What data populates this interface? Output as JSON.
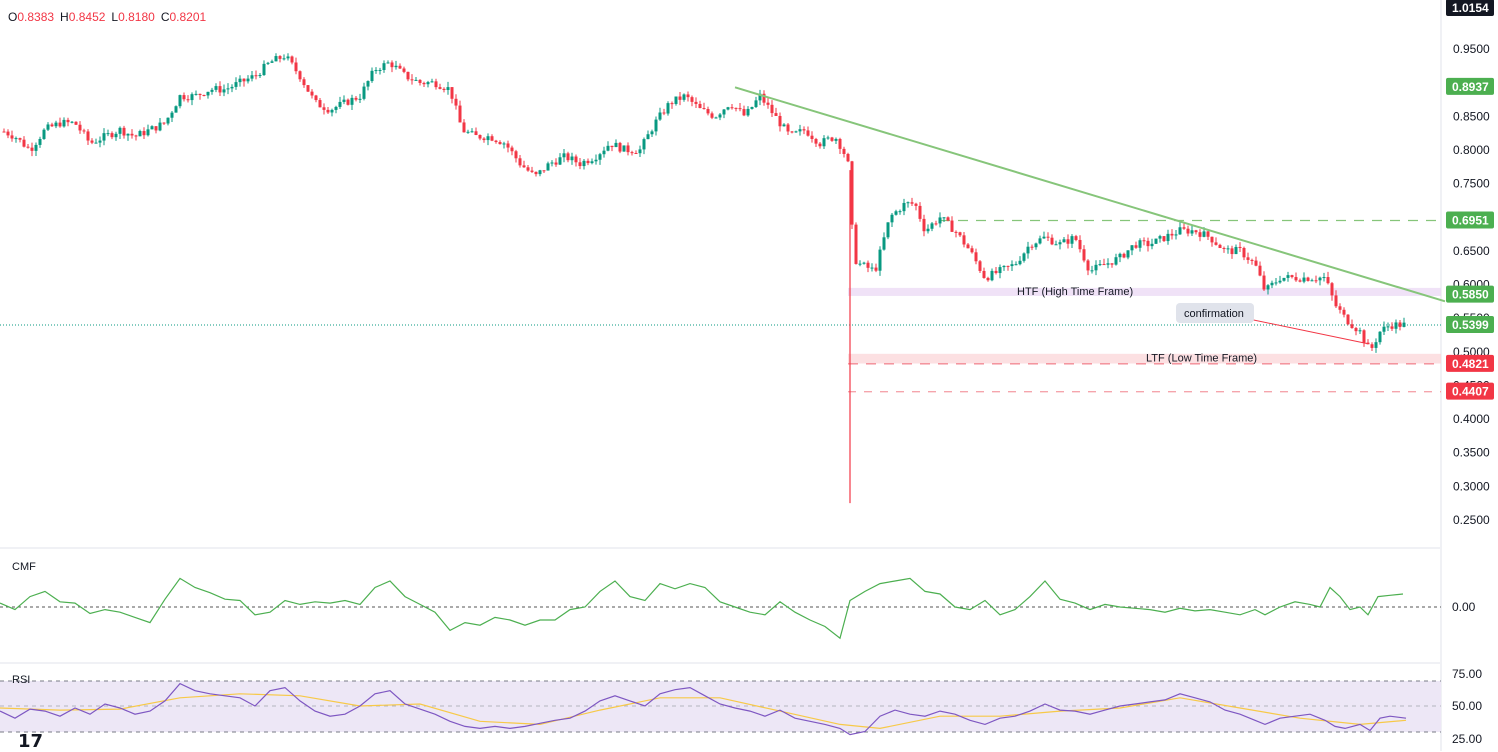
{
  "ohlc": {
    "open_key": "O",
    "open": "0.8383",
    "high_key": "H",
    "high": "0.8452",
    "low_key": "L",
    "low": "0.8180",
    "close_key": "C",
    "close": "0.8201"
  },
  "colors": {
    "up": "#089981",
    "down": "#f23645",
    "trendline": "#86c57a",
    "htf_zone": "#e9d5f3",
    "ltf_zone": "#fbd3d6",
    "cmf": "#4caf50",
    "rsi": "#7e57c2",
    "rsi_ma": "#f7c948",
    "rsi_band": "#ede7f6"
  },
  "indicators": {
    "cmf_label": "CMF",
    "cmf_value": "0.00",
    "rsi_label": "RSI",
    "rsi_ticks": [
      "75.00",
      "50.00",
      "25.00"
    ]
  },
  "logo": "17",
  "chart_data": {
    "type": "line",
    "yaxis_ticks": [
      "0.9500",
      "0.9000",
      "0.8500",
      "0.8000",
      "0.7500",
      "0.7000",
      "0.6500",
      "0.6000",
      "0.5500",
      "0.5000",
      "0.4500",
      "0.4000",
      "0.3500",
      "0.3000",
      "0.2500"
    ],
    "ylim": [
      0.23,
      1.02
    ],
    "price_labels": [
      {
        "value": 1.0154,
        "text": "1.0154",
        "color": "#131722"
      },
      {
        "value": 0.8937,
        "text": "0.8937",
        "color": "#4caf50"
      },
      {
        "value": 0.6951,
        "text": "0.6951",
        "color": "#4caf50"
      },
      {
        "value": 0.585,
        "text": "0.5850",
        "color": "#4caf50"
      },
      {
        "value": 0.5399,
        "text": "0.5399",
        "color": "#4caf50"
      },
      {
        "value": 0.4821,
        "text": "0.4821",
        "color": "#f23645"
      },
      {
        "value": 0.4407,
        "text": "0.4407",
        "color": "#f23645"
      }
    ],
    "annotations": {
      "htf": "HTF (High Time Frame)",
      "ltf": "LTF (Low Time Frame)",
      "confirmation": "confirmation"
    },
    "price_series": [
      [
        0,
        0.83
      ],
      [
        15,
        0.82
      ],
      [
        30,
        0.8
      ],
      [
        45,
        0.83
      ],
      [
        60,
        0.84
      ],
      [
        75,
        0.84
      ],
      [
        90,
        0.81
      ],
      [
        105,
        0.82
      ],
      [
        120,
        0.83
      ],
      [
        135,
        0.82
      ],
      [
        150,
        0.83
      ],
      [
        165,
        0.84
      ],
      [
        180,
        0.88
      ],
      [
        195,
        0.88
      ],
      [
        210,
        0.89
      ],
      [
        225,
        0.89
      ],
      [
        240,
        0.9
      ],
      [
        255,
        0.91
      ],
      [
        270,
        0.93
      ],
      [
        285,
        0.94
      ],
      [
        300,
        0.91
      ],
      [
        315,
        0.87
      ],
      [
        330,
        0.86
      ],
      [
        345,
        0.87
      ],
      [
        360,
        0.88
      ],
      [
        375,
        0.92
      ],
      [
        390,
        0.93
      ],
      [
        405,
        0.91
      ],
      [
        420,
        0.9
      ],
      [
        435,
        0.9
      ],
      [
        450,
        0.89
      ],
      [
        462,
        0.83
      ],
      [
        475,
        0.82
      ],
      [
        490,
        0.82
      ],
      [
        505,
        0.81
      ],
      [
        520,
        0.78
      ],
      [
        535,
        0.76
      ],
      [
        550,
        0.78
      ],
      [
        565,
        0.79
      ],
      [
        580,
        0.78
      ],
      [
        595,
        0.79
      ],
      [
        610,
        0.81
      ],
      [
        625,
        0.8
      ],
      [
        640,
        0.8
      ],
      [
        655,
        0.84
      ],
      [
        670,
        0.87
      ],
      [
        685,
        0.88
      ],
      [
        700,
        0.86
      ],
      [
        715,
        0.85
      ],
      [
        730,
        0.87
      ],
      [
        745,
        0.85
      ],
      [
        760,
        0.88
      ],
      [
        775,
        0.85
      ],
      [
        790,
        0.82
      ],
      [
        805,
        0.83
      ],
      [
        820,
        0.81
      ],
      [
        835,
        0.82
      ],
      [
        843,
        0.8
      ],
      [
        850,
        0.77
      ],
      [
        853,
        0.64
      ],
      [
        860,
        0.63
      ],
      [
        875,
        0.62
      ],
      [
        890,
        0.7
      ],
      [
        905,
        0.72
      ],
      [
        915,
        0.72
      ],
      [
        925,
        0.68
      ],
      [
        940,
        0.7
      ],
      [
        955,
        0.68
      ],
      [
        970,
        0.65
      ],
      [
        985,
        0.61
      ],
      [
        1000,
        0.62
      ],
      [
        1015,
        0.63
      ],
      [
        1030,
        0.66
      ],
      [
        1045,
        0.67
      ],
      [
        1060,
        0.66
      ],
      [
        1075,
        0.67
      ],
      [
        1090,
        0.62
      ],
      [
        1105,
        0.63
      ],
      [
        1120,
        0.64
      ],
      [
        1135,
        0.66
      ],
      [
        1150,
        0.66
      ],
      [
        1165,
        0.67
      ],
      [
        1180,
        0.68
      ],
      [
        1195,
        0.68
      ],
      [
        1210,
        0.67
      ],
      [
        1225,
        0.65
      ],
      [
        1240,
        0.65
      ],
      [
        1255,
        0.63
      ],
      [
        1265,
        0.59
      ],
      [
        1280,
        0.61
      ],
      [
        1295,
        0.61
      ],
      [
        1310,
        0.61
      ],
      [
        1325,
        0.61
      ],
      [
        1335,
        0.57
      ],
      [
        1345,
        0.55
      ],
      [
        1360,
        0.53
      ],
      [
        1370,
        0.5
      ],
      [
        1380,
        0.53
      ],
      [
        1390,
        0.54
      ],
      [
        1400,
        0.54
      ],
      [
        1406,
        0.54
      ]
    ],
    "wick_low": [
      850,
      0.275
    ],
    "trendline": [
      [
        735,
        0.893
      ],
      [
        1445,
        0.575
      ]
    ],
    "confirmation_line": [
      [
        1235,
        0.553
      ],
      [
        1368,
        0.512
      ]
    ],
    "levels": {
      "htf_top": 0.595,
      "htf_bottom": 0.583,
      "ltf_top": 0.497,
      "ltf_bottom": 0.487,
      "dash_ltf": 0.4821,
      "dash_low": 0.4407,
      "dash_high": 0.6951,
      "last": 0.5399
    },
    "cmf_series": [
      [
        0,
        0.03
      ],
      [
        15,
        -0.02
      ],
      [
        30,
        0.08
      ],
      [
        45,
        0.12
      ],
      [
        60,
        0.04
      ],
      [
        75,
        0.03
      ],
      [
        90,
        -0.05
      ],
      [
        105,
        -0.02
      ],
      [
        120,
        -0.04
      ],
      [
        135,
        -0.08
      ],
      [
        150,
        -0.12
      ],
      [
        165,
        0.06
      ],
      [
        180,
        0.22
      ],
      [
        195,
        0.15
      ],
      [
        210,
        0.11
      ],
      [
        225,
        0.06
      ],
      [
        240,
        0.05
      ],
      [
        255,
        -0.06
      ],
      [
        270,
        -0.04
      ],
      [
        285,
        0.05
      ],
      [
        300,
        0.02
      ],
      [
        315,
        0.04
      ],
      [
        330,
        0.03
      ],
      [
        345,
        0.05
      ],
      [
        360,
        0.02
      ],
      [
        375,
        0.15
      ],
      [
        390,
        0.2
      ],
      [
        405,
        0.08
      ],
      [
        420,
        0.02
      ],
      [
        435,
        -0.04
      ],
      [
        450,
        -0.18
      ],
      [
        465,
        -0.12
      ],
      [
        480,
        -0.14
      ],
      [
        495,
        -0.08
      ],
      [
        510,
        -0.1
      ],
      [
        525,
        -0.14
      ],
      [
        540,
        -0.1
      ],
      [
        555,
        -0.1
      ],
      [
        570,
        -0.02
      ],
      [
        585,
        0.0
      ],
      [
        600,
        0.12
      ],
      [
        615,
        0.2
      ],
      [
        630,
        0.08
      ],
      [
        645,
        0.05
      ],
      [
        660,
        0.18
      ],
      [
        675,
        0.14
      ],
      [
        690,
        0.18
      ],
      [
        705,
        0.15
      ],
      [
        720,
        0.04
      ],
      [
        735,
        0.0
      ],
      [
        750,
        -0.04
      ],
      [
        765,
        -0.06
      ],
      [
        780,
        0.04
      ],
      [
        795,
        -0.04
      ],
      [
        810,
        -0.1
      ],
      [
        825,
        -0.15
      ],
      [
        840,
        -0.24
      ],
      [
        850,
        0.05
      ],
      [
        865,
        0.12
      ],
      [
        880,
        0.18
      ],
      [
        895,
        0.2
      ],
      [
        910,
        0.22
      ],
      [
        925,
        0.12
      ],
      [
        940,
        0.1
      ],
      [
        955,
        0.0
      ],
      [
        970,
        -0.02
      ],
      [
        985,
        0.05
      ],
      [
        1000,
        -0.06
      ],
      [
        1015,
        -0.02
      ],
      [
        1030,
        0.08
      ],
      [
        1045,
        0.2
      ],
      [
        1060,
        0.06
      ],
      [
        1075,
        0.03
      ],
      [
        1090,
        -0.02
      ],
      [
        1105,
        0.02
      ],
      [
        1120,
        0.0
      ],
      [
        1135,
        -0.01
      ],
      [
        1150,
        -0.02
      ],
      [
        1165,
        -0.04
      ],
      [
        1180,
        -0.01
      ],
      [
        1195,
        -0.03
      ],
      [
        1210,
        -0.02
      ],
      [
        1225,
        -0.04
      ],
      [
        1240,
        -0.06
      ],
      [
        1255,
        -0.02
      ],
      [
        1265,
        -0.06
      ],
      [
        1280,
        0.0
      ],
      [
        1295,
        0.04
      ],
      [
        1310,
        0.02
      ],
      [
        1320,
        0.0
      ],
      [
        1330,
        0.15
      ],
      [
        1340,
        0.08
      ],
      [
        1350,
        -0.02
      ],
      [
        1360,
        0.0
      ],
      [
        1368,
        -0.06
      ],
      [
        1378,
        0.08
      ],
      [
        1390,
        0.09
      ],
      [
        1403,
        0.1
      ]
    ],
    "rsi_series": [
      [
        0,
        45
      ],
      [
        15,
        38
      ],
      [
        30,
        47
      ],
      [
        45,
        45
      ],
      [
        60,
        40
      ],
      [
        75,
        48
      ],
      [
        90,
        42
      ],
      [
        105,
        52
      ],
      [
        120,
        48
      ],
      [
        135,
        42
      ],
      [
        150,
        45
      ],
      [
        165,
        55
      ],
      [
        180,
        72
      ],
      [
        195,
        65
      ],
      [
        210,
        62
      ],
      [
        225,
        60
      ],
      [
        240,
        58
      ],
      [
        255,
        50
      ],
      [
        270,
        65
      ],
      [
        285,
        68
      ],
      [
        300,
        55
      ],
      [
        315,
        45
      ],
      [
        330,
        40
      ],
      [
        345,
        42
      ],
      [
        360,
        50
      ],
      [
        375,
        62
      ],
      [
        390,
        65
      ],
      [
        405,
        52
      ],
      [
        420,
        47
      ],
      [
        435,
        42
      ],
      [
        450,
        35
      ],
      [
        465,
        30
      ],
      [
        480,
        28
      ],
      [
        495,
        30
      ],
      [
        510,
        28
      ],
      [
        525,
        30
      ],
      [
        540,
        33
      ],
      [
        555,
        36
      ],
      [
        570,
        38
      ],
      [
        585,
        45
      ],
      [
        600,
        55
      ],
      [
        615,
        60
      ],
      [
        630,
        55
      ],
      [
        645,
        50
      ],
      [
        660,
        62
      ],
      [
        675,
        66
      ],
      [
        690,
        68
      ],
      [
        705,
        60
      ],
      [
        720,
        52
      ],
      [
        735,
        48
      ],
      [
        750,
        45
      ],
      [
        765,
        40
      ],
      [
        780,
        46
      ],
      [
        795,
        38
      ],
      [
        810,
        35
      ],
      [
        825,
        32
      ],
      [
        840,
        28
      ],
      [
        850,
        22
      ],
      [
        865,
        25
      ],
      [
        880,
        40
      ],
      [
        895,
        46
      ],
      [
        910,
        42
      ],
      [
        925,
        40
      ],
      [
        940,
        45
      ],
      [
        955,
        42
      ],
      [
        970,
        36
      ],
      [
        985,
        32
      ],
      [
        1000,
        38
      ],
      [
        1015,
        40
      ],
      [
        1030,
        45
      ],
      [
        1045,
        52
      ],
      [
        1060,
        46
      ],
      [
        1075,
        45
      ],
      [
        1090,
        42
      ],
      [
        1105,
        46
      ],
      [
        1120,
        50
      ],
      [
        1135,
        52
      ],
      [
        1150,
        54
      ],
      [
        1165,
        56
      ],
      [
        1180,
        62
      ],
      [
        1195,
        58
      ],
      [
        1210,
        54
      ],
      [
        1225,
        46
      ],
      [
        1240,
        42
      ],
      [
        1255,
        36
      ],
      [
        1265,
        32
      ],
      [
        1280,
        38
      ],
      [
        1295,
        40
      ],
      [
        1310,
        42
      ],
      [
        1325,
        36
      ],
      [
        1335,
        30
      ],
      [
        1345,
        28
      ],
      [
        1360,
        32
      ],
      [
        1370,
        26
      ],
      [
        1380,
        38
      ],
      [
        1390,
        40
      ],
      [
        1406,
        38
      ]
    ],
    "rsi_ma_series": [
      [
        0,
        48
      ],
      [
        60,
        46
      ],
      [
        120,
        47
      ],
      [
        180,
        58
      ],
      [
        240,
        62
      ],
      [
        300,
        60
      ],
      [
        360,
        50
      ],
      [
        420,
        52
      ],
      [
        480,
        35
      ],
      [
        540,
        32
      ],
      [
        600,
        46
      ],
      [
        660,
        58
      ],
      [
        720,
        58
      ],
      [
        780,
        45
      ],
      [
        840,
        32
      ],
      [
        880,
        28
      ],
      [
        940,
        40
      ],
      [
        1000,
        40
      ],
      [
        1060,
        45
      ],
      [
        1120,
        48
      ],
      [
        1180,
        58
      ],
      [
        1240,
        48
      ],
      [
        1300,
        38
      ],
      [
        1360,
        32
      ],
      [
        1406,
        36
      ]
    ]
  }
}
